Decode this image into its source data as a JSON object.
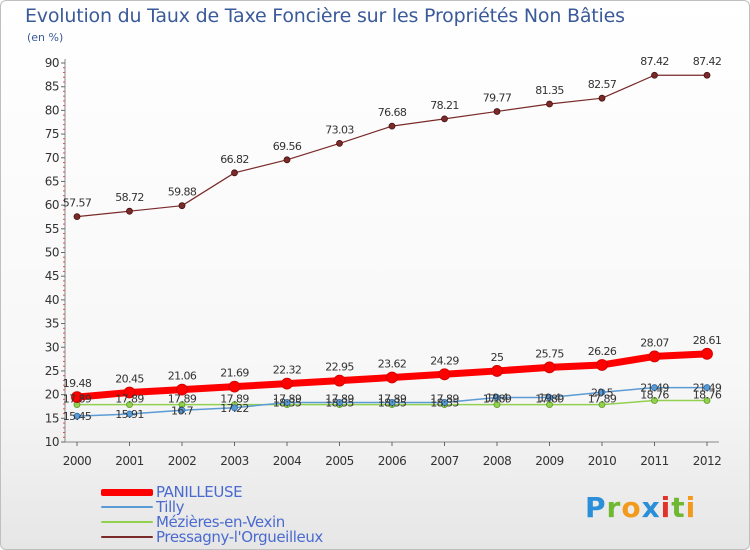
{
  "title": "Evolution du Taux de Taxe Foncière sur les Propriétés Non Bâties",
  "unit_label": "(en %)",
  "logo": {
    "text": "Proxiti",
    "letters": [
      {
        "ch": "P",
        "color": "#2a8fd8"
      },
      {
        "ch": "r",
        "color": "#6fb832"
      },
      {
        "ch": "o",
        "color": "#f29a1c"
      },
      {
        "ch": "x",
        "color": "#2a8fd8"
      },
      {
        "ch": "i",
        "color": "#e2332b"
      },
      {
        "ch": "t",
        "color": "#6fb832"
      },
      {
        "ch": "i",
        "color": "#f29a1c"
      }
    ]
  },
  "chart_data": {
    "type": "line",
    "title": "Evolution du Taux de Taxe Foncière sur les Propriétés Non Bâties",
    "ylabel": "(en %)",
    "xlabel": "",
    "ylim": [
      10,
      90
    ],
    "yticks": [
      10,
      15,
      20,
      25,
      30,
      35,
      40,
      45,
      50,
      55,
      60,
      65,
      70,
      75,
      80,
      85,
      90
    ],
    "x": [
      "2000",
      "2001",
      "2002",
      "2003",
      "2004",
      "2005",
      "2006",
      "2007",
      "2008",
      "2009",
      "2010",
      "2011",
      "2012"
    ],
    "series": [
      {
        "name": "PANILLEUSE",
        "color": "#ff0000",
        "values": [
          19.48,
          20.45,
          21.06,
          21.69,
          22.32,
          22.95,
          23.62,
          24.29,
          25,
          25.75,
          26.26,
          28.07,
          28.61
        ],
        "labels": [
          "19.48",
          "20.45",
          "21.06",
          "21.69",
          "22.32",
          "22.95",
          "23.62",
          "24.29",
          "25",
          "25.75",
          "26.26",
          "28.07",
          "28.61"
        ]
      },
      {
        "name": "Tilly",
        "color": "#5b9bd5",
        "values": [
          15.45,
          15.91,
          16.7,
          17.22,
          18.35,
          18.35,
          18.35,
          18.35,
          19.4,
          19.4,
          20.5,
          21.49,
          21.49
        ],
        "labels": [
          "15.45",
          "15.91",
          "16.7",
          "17.22",
          "18.35",
          "18.35",
          "18.35",
          "18.35",
          "19.4",
          "19.4",
          "20.5",
          "21.49",
          "21.49"
        ]
      },
      {
        "name": "Mézières-en-Vexin",
        "color": "#92d050",
        "values": [
          17.89,
          17.89,
          17.89,
          17.89,
          17.89,
          17.89,
          17.89,
          17.89,
          17.89,
          17.89,
          17.89,
          18.76,
          18.76
        ],
        "labels": [
          "17.89",
          "17.89",
          "17.89",
          "17.89",
          "17.89",
          "17.89",
          "17.89",
          "17.89",
          "17.89",
          "17.89",
          "17.89",
          "18.76",
          "18.76"
        ]
      },
      {
        "name": "Pressagny-l'Orgueilleux",
        "color": "#7b2a2a",
        "values": [
          57.57,
          58.72,
          59.88,
          66.82,
          69.56,
          73.03,
          76.68,
          78.21,
          79.77,
          81.35,
          82.57,
          87.42,
          87.42
        ],
        "labels": [
          "57.57",
          "58.72",
          "59.88",
          "66.82",
          "69.56",
          "73.03",
          "76.68",
          "78.21",
          "79.77",
          "81.35",
          "82.57",
          "87.42",
          "87.42"
        ]
      }
    ],
    "legend_position": "bottom-left",
    "grid": false
  }
}
